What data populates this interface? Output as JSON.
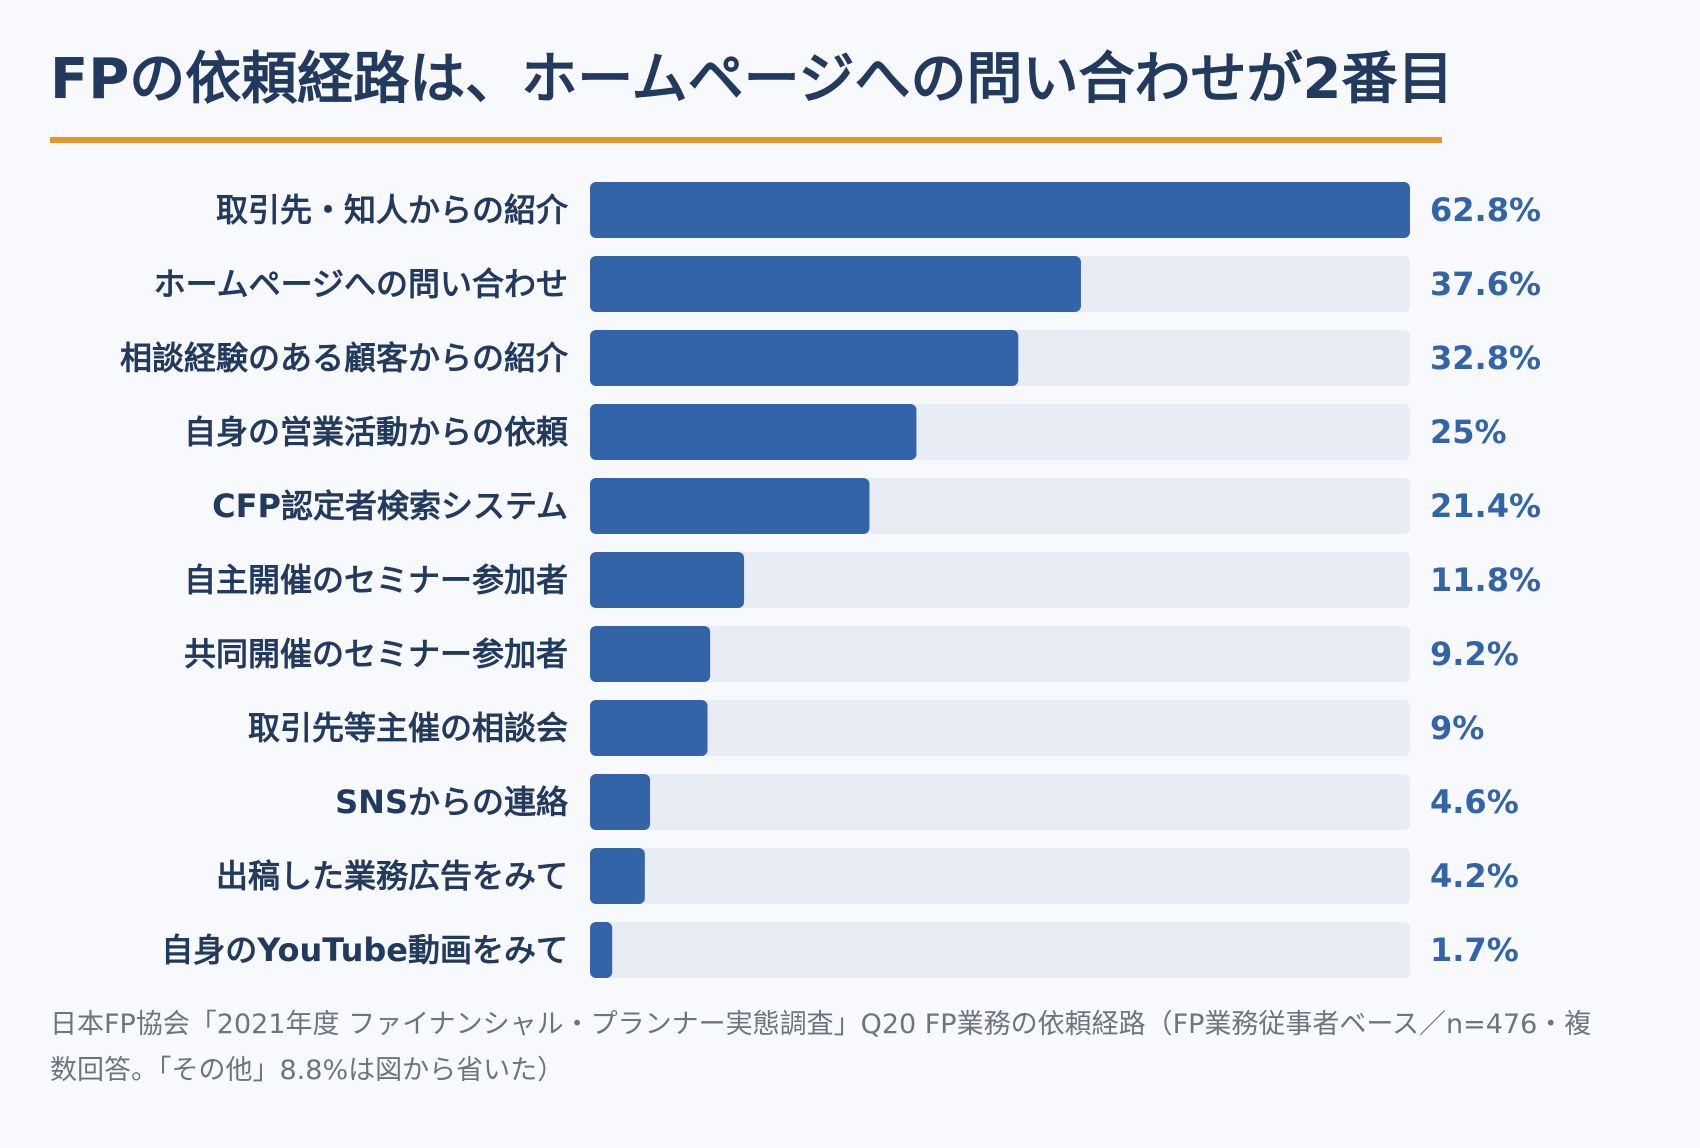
{
  "title": "FPの依頼経路は、ホームページへの問い合わせが2番目",
  "source_text": "日本FP協会「2021年度 ファイナンシャル・プランナー実態調査」Q20 FP業務の依頼経路（FP業務従事者ベース／n=476・複数回答。「その他」8.8%は図から省いた）",
  "colors": {
    "accent_rule": "#e8952a",
    "bar": "#3464a8",
    "track": "#e7ecf5",
    "value_text": "#3464a8",
    "label_text": "#223a5e",
    "source_text": "#6c7480"
  },
  "chart_data": {
    "type": "bar",
    "orientation": "horizontal",
    "title": "FPの依頼経路は、ホームページへの問い合わせが2番目",
    "categories": [
      "取引先・知人からの紹介",
      "ホームページへの問い合わせ",
      "相談経験のある顧客からの紹介",
      "自身の営業活動からの依頼",
      "CFP認定者検索システム",
      "自主開催のセミナー参加者",
      "共同開催のセミナー参加者",
      "取引先等主催の相談会",
      "SNSからの連絡",
      "出稿した業務広告をみて",
      "自身のYouTube動画をみて"
    ],
    "values": [
      62.8,
      37.6,
      32.8,
      25,
      21.4,
      11.8,
      9.2,
      9,
      4.6,
      4.2,
      1.7
    ],
    "value_labels": [
      "62.8%",
      "37.6%",
      "32.8%",
      "25%",
      "21.4%",
      "11.8%",
      "9.2%",
      "9%",
      "4.6%",
      "4.2%",
      "1.7%"
    ],
    "unit": "%",
    "xlim": [
      0,
      62.8
    ],
    "grid": false,
    "legend": "none"
  }
}
